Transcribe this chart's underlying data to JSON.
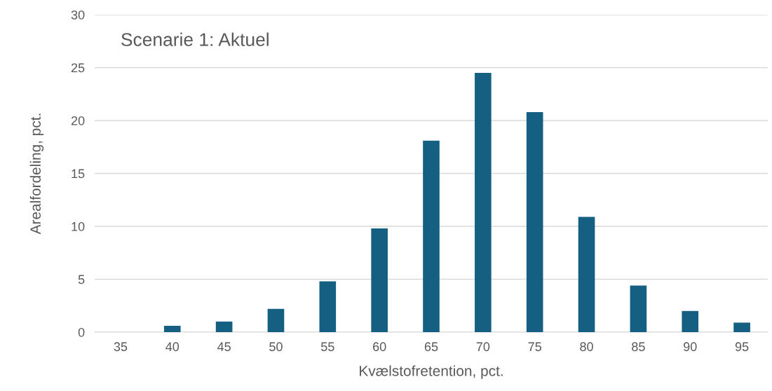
{
  "chart_data": {
    "type": "bar",
    "title": "Scenarie 1: Aktuel",
    "xlabel": "Kvælstofretention, pct.",
    "ylabel": "Arealfordeling, pct.",
    "categories": [
      "35",
      "40",
      "45",
      "50",
      "55",
      "60",
      "65",
      "70",
      "75",
      "80",
      "85",
      "90",
      "95"
    ],
    "values": [
      0,
      0.6,
      1.0,
      2.2,
      4.8,
      9.8,
      18.1,
      24.5,
      20.8,
      10.9,
      4.4,
      2.0,
      0.9
    ],
    "color": "#156082",
    "ylim": [
      0,
      30
    ],
    "yticks": [
      0,
      5,
      10,
      15,
      20,
      25,
      30
    ],
    "grid": "y",
    "legend": false
  }
}
